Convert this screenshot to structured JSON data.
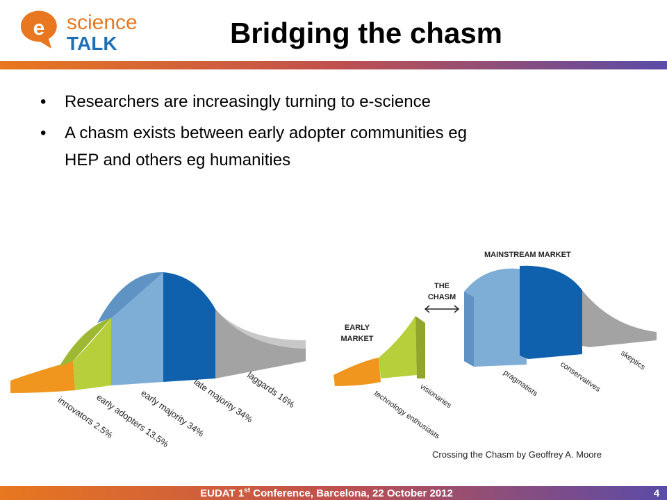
{
  "logo": {
    "mark": "e",
    "word": "science",
    "brand": "TALK"
  },
  "title": "Bridging the chasm",
  "bullets": [
    "Researchers are increasingly turning to e-science",
    "A chasm exists between early adopter communities eg",
    "HEP and others eg humanities"
  ],
  "left_diagram": {
    "labels": [
      "innovators 2.5%",
      "early adopters 13.5%",
      "early majority 34%",
      "late majority 34%",
      "laggards 16%"
    ]
  },
  "right_diagram": {
    "mainstream": "MAINSTREAM  MARKET",
    "chasm": [
      "THE",
      "CHASM"
    ],
    "early_market": [
      "EARLY",
      "MARKET"
    ],
    "labels": [
      "technology enthusiasts",
      "visionaries",
      "pragmatists",
      "conservatives",
      "skeptics"
    ]
  },
  "caption": "Crossing the Chasm by Geoffrey A. Moore",
  "footer": {
    "before": "EUDAT 1",
    "sup": "st",
    "after": " Conference, Barcelona, 22 October 2012",
    "page": "4"
  }
}
